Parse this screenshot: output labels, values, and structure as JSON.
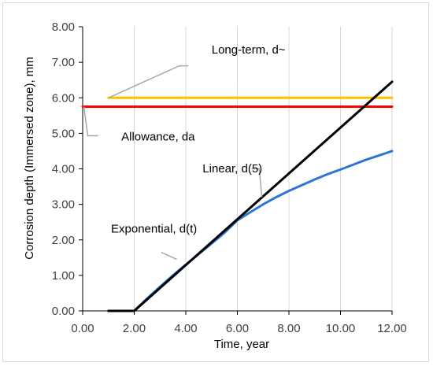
{
  "chart_data": {
    "type": "line",
    "xlabel": "Time, year",
    "ylabel": "Corrosion depth (Immersed zone), mm",
    "xlim": [
      0,
      12
    ],
    "ylim": [
      0,
      8
    ],
    "xticks": [
      0,
      2,
      4,
      6,
      8,
      10,
      12
    ],
    "yticks": [
      0,
      1,
      2,
      3,
      4,
      5,
      6,
      7,
      8
    ],
    "xtick_labels": [
      "0.00",
      "2.00",
      "4.00",
      "6.00",
      "8.00",
      "10.00",
      "12.00"
    ],
    "ytick_labels": [
      "0.00",
      "1.00",
      "2.00",
      "3.00",
      "4.00",
      "5.00",
      "6.00",
      "7.00",
      "8.00"
    ],
    "grid": "vertical",
    "series": [
      {
        "name": "Long-term, d~",
        "color": "#ffc000",
        "x": [
          1,
          12
        ],
        "y": [
          6.0,
          6.0
        ]
      },
      {
        "name": "Allowance, da",
        "color": "#ff0000",
        "x": [
          0,
          12
        ],
        "y": [
          5.75,
          5.75
        ]
      },
      {
        "name": "Exponential, d(t)",
        "color": "#2e75d6",
        "x": [
          1,
          2,
          2.5,
          3,
          3.5,
          4,
          4.5,
          5,
          5.5,
          6,
          6.5,
          7,
          7.5,
          8,
          8.5,
          9,
          9.5,
          10,
          10.5,
          11,
          11.5,
          12
        ],
        "y": [
          0,
          0,
          0.35,
          0.68,
          1.0,
          1.3,
          1.6,
          1.9,
          2.2,
          2.55,
          2.78,
          3.0,
          3.2,
          3.38,
          3.54,
          3.7,
          3.85,
          3.98,
          4.12,
          4.26,
          4.38,
          4.5
        ]
      },
      {
        "name": "Linear, d(5)",
        "color": "#000000",
        "x": [
          1,
          2,
          12
        ],
        "y": [
          0,
          0,
          6.45
        ]
      }
    ],
    "annotations": [
      {
        "text": "Long-term, d~",
        "x": 5.0,
        "y": 7.25,
        "leader": [
          [
            1.0,
            6.0
          ],
          [
            3.75,
            6.9
          ],
          [
            4.1,
            6.9
          ]
        ]
      },
      {
        "text": "Allowance, da",
        "x": 1.5,
        "y": 4.8,
        "leader": [
          [
            0.05,
            5.75
          ],
          [
            0.2,
            4.93
          ],
          [
            0.6,
            4.93
          ]
        ]
      },
      {
        "text": "Linear, d(5)",
        "x": 4.65,
        "y": 3.9,
        "leader": [
          [
            6.95,
            3.2
          ],
          [
            6.85,
            4.0
          ],
          [
            6.55,
            4.0
          ]
        ]
      },
      {
        "text": "Exponential, d(t)",
        "x": 1.1,
        "y": 2.2,
        "leader": [
          [
            3.65,
            1.45
          ],
          [
            3.05,
            1.65
          ]
        ]
      }
    ]
  }
}
